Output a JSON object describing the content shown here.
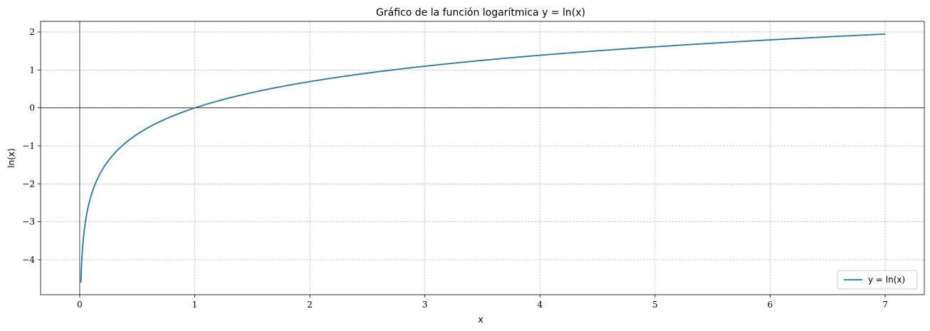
{
  "chart_data": {
    "type": "line",
    "title": "Gráfico de la función logarítmica y = ln(x)",
    "xlabel": "x",
    "ylabel": "ln(x)",
    "xlim": [
      -0.34,
      7.34
    ],
    "ylim": [
      -4.92,
      2.28
    ],
    "xticks": [
      0,
      1,
      2,
      3,
      4,
      5,
      6,
      7
    ],
    "xtick_labels": [
      "0",
      "1",
      "2",
      "3",
      "4",
      "5",
      "6",
      "7"
    ],
    "yticks": [
      -4,
      -3,
      -2,
      -1,
      0,
      1,
      2
    ],
    "ytick_labels": [
      "−4",
      "−3",
      "−2",
      "−1",
      "0",
      "1",
      "2"
    ],
    "grid": true,
    "grid_style": "dashed",
    "reference_lines": {
      "x": 0,
      "y": 0
    },
    "legend_position": "lower-right",
    "series": [
      {
        "name": "y = ln(x)",
        "color": "#1f77b4",
        "function": "ln(x)",
        "x_range": [
          0.01,
          7
        ],
        "x": [
          0.01,
          0.02,
          0.03,
          0.05,
          0.07,
          0.1,
          0.15,
          0.2,
          0.3,
          0.4,
          0.5,
          0.6,
          0.8,
          1,
          1.25,
          1.5,
          2,
          2.5,
          3,
          3.5,
          4,
          4.5,
          5,
          5.5,
          6,
          6.5,
          7
        ],
        "y": [
          -4.61,
          -3.91,
          -3.51,
          -3.0,
          -2.66,
          -2.3,
          -1.9,
          -1.61,
          -1.2,
          -0.92,
          -0.69,
          -0.51,
          -0.22,
          0,
          0.22,
          0.41,
          0.69,
          0.92,
          1.1,
          1.25,
          1.39,
          1.5,
          1.61,
          1.7,
          1.79,
          1.87,
          1.95
        ]
      }
    ]
  }
}
